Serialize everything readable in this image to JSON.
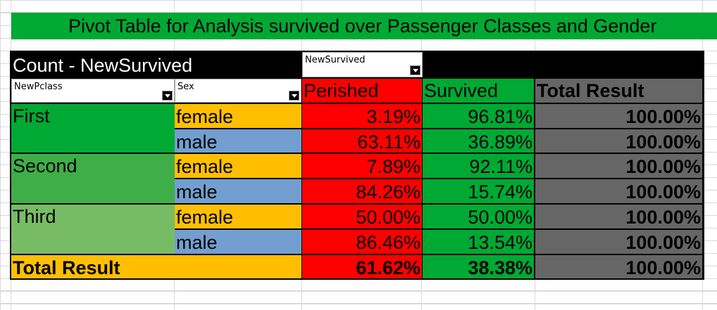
{
  "title": "Pivot Table for Analysis survived over Passenger Classes and Gender",
  "data_field_label": "Count - NewSurvived",
  "column_field": {
    "label": "NewSurvived"
  },
  "row_fields": [
    {
      "label": "NewPclass"
    },
    {
      "label": "Sex"
    }
  ],
  "column_headers": {
    "perished": "Perished",
    "survived": "Survived",
    "total": "Total Result"
  },
  "rows": [
    {
      "pclass": "First",
      "sex": "female",
      "perished": "3.19%",
      "survived": "96.81%",
      "total": "100.00%"
    },
    {
      "pclass": "",
      "sex": "male",
      "perished": "63.11%",
      "survived": "36.89%",
      "total": "100.00%"
    },
    {
      "pclass": "Second",
      "sex": "female",
      "perished": "7.89%",
      "survived": "92.11%",
      "total": "100.00%"
    },
    {
      "pclass": "",
      "sex": "male",
      "perished": "84.26%",
      "survived": "15.74%",
      "total": "100.00%"
    },
    {
      "pclass": "Third",
      "sex": "female",
      "perished": "50.00%",
      "survived": "50.00%",
      "total": "100.00%"
    },
    {
      "pclass": "",
      "sex": "male",
      "perished": "86.46%",
      "survived": "13.54%",
      "total": "100.00%"
    }
  ],
  "grand_total": {
    "label": "Total Result",
    "perished": "61.62%",
    "survived": "38.38%",
    "total": "100.00%"
  },
  "colors": {
    "title_bg": "#00a933",
    "header_bg": "#000000",
    "perished": "#ff0000",
    "survived": "#00a933",
    "total": "#666666",
    "first": "#00a933",
    "second": "#3fae49",
    "third": "#77bc65",
    "female": "#ffbf00",
    "male": "#729fcf",
    "grand_total_label": "#ffbf00"
  },
  "icons": {
    "dropdown": "chevron-down-icon"
  }
}
